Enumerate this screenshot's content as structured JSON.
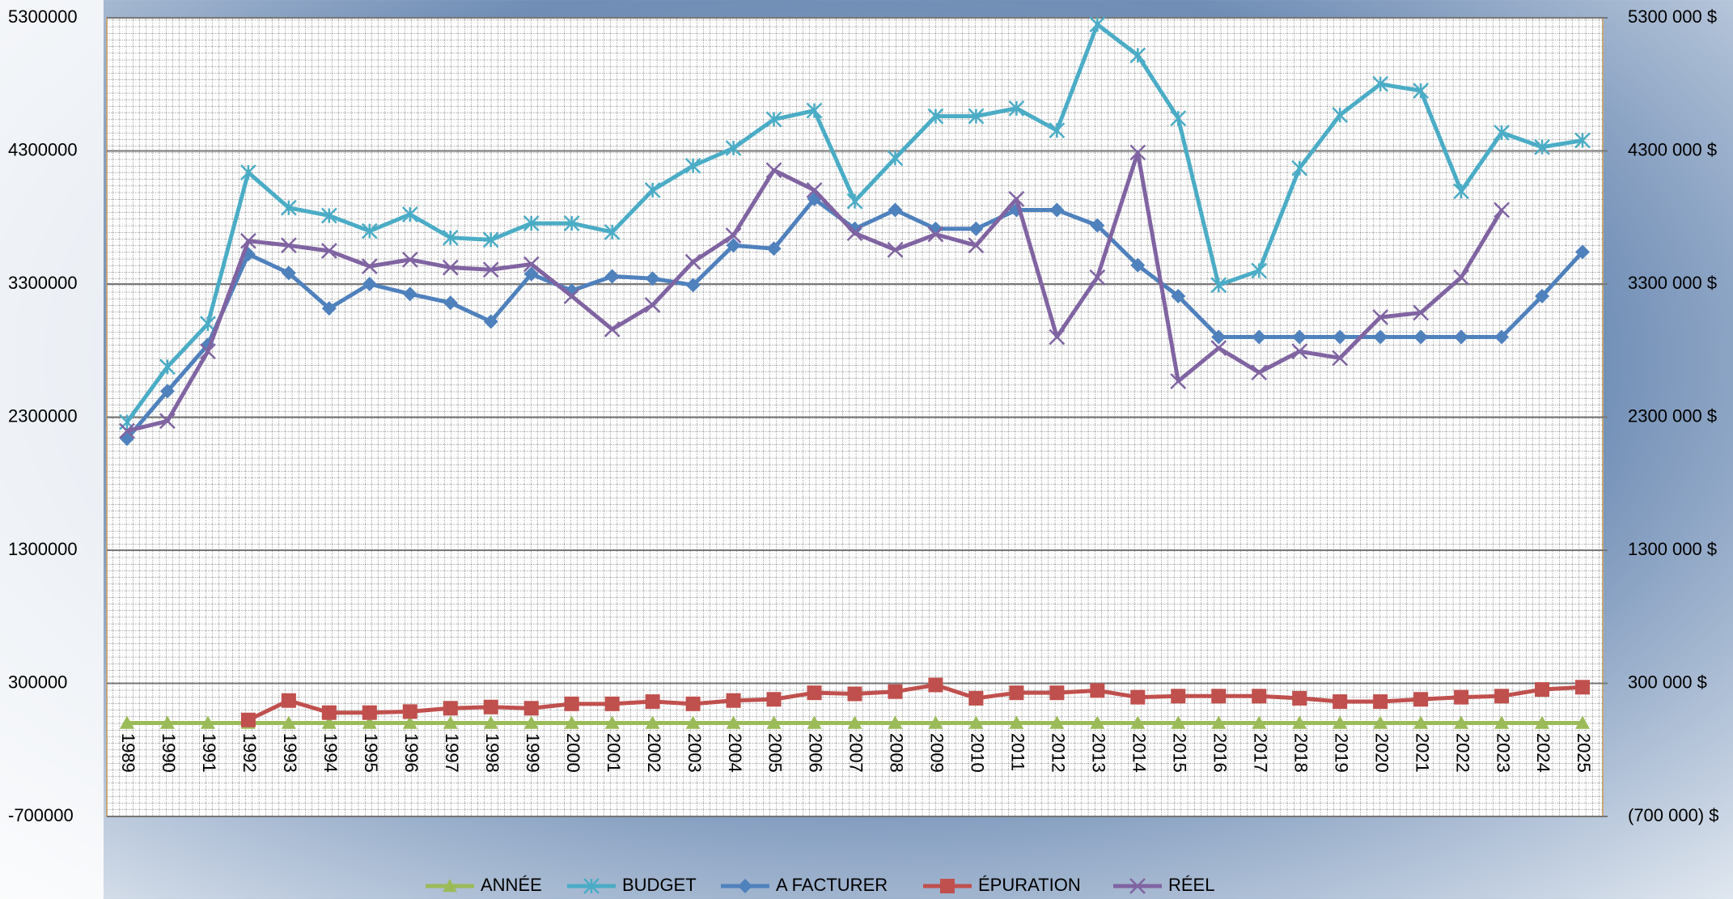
{
  "chart_data": {
    "type": "line",
    "categories": [
      "1989",
      "1990",
      "1991",
      "1992",
      "1993",
      "1994",
      "1995",
      "1996",
      "1997",
      "1998",
      "1999",
      "2000",
      "2001",
      "2002",
      "2003",
      "2004",
      "2005",
      "2006",
      "2007",
      "2008",
      "2009",
      "2010",
      "2011",
      "2012",
      "2013",
      "2014",
      "2015",
      "2016",
      "2017",
      "2018",
      "2019",
      "2020",
      "2021",
      "2022",
      "2023",
      "2024",
      "2025"
    ],
    "ylim": [
      -700000,
      5300000
    ],
    "yticks": [
      -700000,
      300000,
      1300000,
      2300000,
      3300000,
      4300000,
      5300000
    ],
    "y2lim": [
      -700000,
      5300000
    ],
    "y2ticks": [
      {
        "value": -700000,
        "label": "(700 000) $"
      },
      {
        "value": 300000,
        "label": "300 000  $"
      },
      {
        "value": 1300000,
        "label": "1300 000  $"
      },
      {
        "value": 2300000,
        "label": "2300 000  $"
      },
      {
        "value": 3300000,
        "label": "3300 000  $"
      },
      {
        "value": 4300000,
        "label": "4300 000  $"
      },
      {
        "value": 5300000,
        "label": "5300 000  $"
      }
    ],
    "grid": true,
    "legend": "bottom",
    "series": [
      {
        "name": "ANNÉE",
        "color": "#9bbb59",
        "marker": "triangle",
        "values": [
          1989,
          1990,
          1991,
          1992,
          1993,
          1994,
          1995,
          1996,
          1997,
          1998,
          1999,
          2000,
          2001,
          2002,
          2003,
          2004,
          2005,
          2006,
          2007,
          2008,
          2009,
          2010,
          2011,
          2012,
          2013,
          2014,
          2015,
          2016,
          2017,
          2018,
          2019,
          2020,
          2021,
          2022,
          2023,
          2024,
          2025
        ]
      },
      {
        "name": "BUDGET",
        "color": "#4bacc6",
        "marker": "star",
        "values": [
          2263000,
          2678000,
          3001000,
          4138000,
          3873000,
          3814000,
          3698000,
          3823000,
          3648000,
          3632000,
          3756000,
          3756000,
          3690000,
          4005000,
          4188000,
          4321000,
          4537000,
          4603000,
          3922000,
          4246000,
          4561000,
          4561000,
          4620000,
          4454000,
          5250000,
          5018000,
          4545000,
          3292000,
          3400000,
          4171000,
          4570000,
          4802000,
          4752000,
          3997000,
          4437000,
          4329000,
          4379000
        ]
      },
      {
        "name": "A FACTURER",
        "color": "#4f81bd",
        "marker": "diamond",
        "values": [
          2138000,
          2495000,
          2844000,
          3524000,
          3383000,
          3117000,
          3300000,
          3225000,
          3159000,
          3018000,
          3375000,
          3250000,
          3358000,
          3341000,
          3292000,
          3590000,
          3566000,
          3939000,
          3715000,
          3856000,
          3715000,
          3715000,
          3856000,
          3856000,
          3740000,
          3441000,
          3209000,
          2902000,
          2902000,
          2902000,
          2902000,
          2902000,
          2902000,
          2902000,
          2902000,
          3209000,
          3541000
        ]
      },
      {
        "name": "ÉPURATION",
        "color": "#c0504d",
        "marker": "square",
        "values": [
          null,
          null,
          null,
          25000,
          171000,
          80000,
          80000,
          88000,
          113000,
          122000,
          113000,
          146000,
          146000,
          163000,
          146000,
          171000,
          180000,
          229000,
          221000,
          238000,
          288000,
          188000,
          229000,
          229000,
          246000,
          196000,
          204000,
          204000,
          204000,
          188000,
          163000,
          163000,
          180000,
          196000,
          204000,
          254000,
          271000
        ]
      },
      {
        "name": "RÉEL",
        "color": "#8064a2",
        "marker": "x",
        "values": [
          2196000,
          2271000,
          2794000,
          3624000,
          3590000,
          3549000,
          3433000,
          3483000,
          3424000,
          3408000,
          3449000,
          3209000,
          2960000,
          3142000,
          3466000,
          3665000,
          4155000,
          4005000,
          3682000,
          3557000,
          3673000,
          3590000,
          3939000,
          2902000,
          3350000,
          4288000,
          2570000,
          2819000,
          2636000,
          2794000,
          2744000,
          3051000,
          3084000,
          3350000,
          3856000,
          null,
          null
        ]
      }
    ]
  }
}
